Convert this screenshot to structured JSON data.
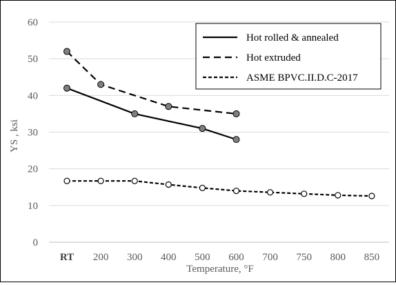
{
  "chart_data": {
    "type": "line",
    "xlabel": "Temperature, °F",
    "ylabel": "YS , ksi",
    "categories": [
      "RT",
      "200",
      "300",
      "400",
      "500",
      "600",
      "700",
      "750",
      "800",
      "850"
    ],
    "ylim": [
      0,
      60
    ],
    "yticks": [
      "0",
      "10",
      "20",
      "30",
      "40",
      "50",
      "60"
    ],
    "grid": "horizontal",
    "legend_position": "top-right",
    "series": [
      {
        "name": "Hot rolled & annealed",
        "line_style": "solid",
        "marker": "filled-gray-circle",
        "points": [
          {
            "x": "RT",
            "y": 42
          },
          {
            "x": "300",
            "y": 35
          },
          {
            "x": "500",
            "y": 31
          },
          {
            "x": "600",
            "y": 28
          }
        ]
      },
      {
        "name": "Hot extruded",
        "line_style": "long-dash",
        "marker": "filled-gray-circle",
        "points": [
          {
            "x": "RT",
            "y": 52
          },
          {
            "x": "200",
            "y": 43
          },
          {
            "x": "400",
            "y": 37
          },
          {
            "x": "600",
            "y": 35
          }
        ]
      },
      {
        "name": "ASME BPVC.II.D.C-2017",
        "line_style": "short-dash",
        "marker": "open-circle",
        "points": [
          {
            "x": "RT",
            "y": 16.7
          },
          {
            "x": "200",
            "y": 16.7
          },
          {
            "x": "300",
            "y": 16.7
          },
          {
            "x": "400",
            "y": 15.7
          },
          {
            "x": "500",
            "y": 14.8
          },
          {
            "x": "600",
            "y": 14
          },
          {
            "x": "700",
            "y": 13.6
          },
          {
            "x": "750",
            "y": 13.2
          },
          {
            "x": "800",
            "y": 12.8
          },
          {
            "x": "850",
            "y": 12.6
          }
        ]
      }
    ],
    "colors": {
      "line": "#000000",
      "marker_fill": "#808080",
      "grid": "#d9d9d9",
      "text": "#595959"
    }
  }
}
